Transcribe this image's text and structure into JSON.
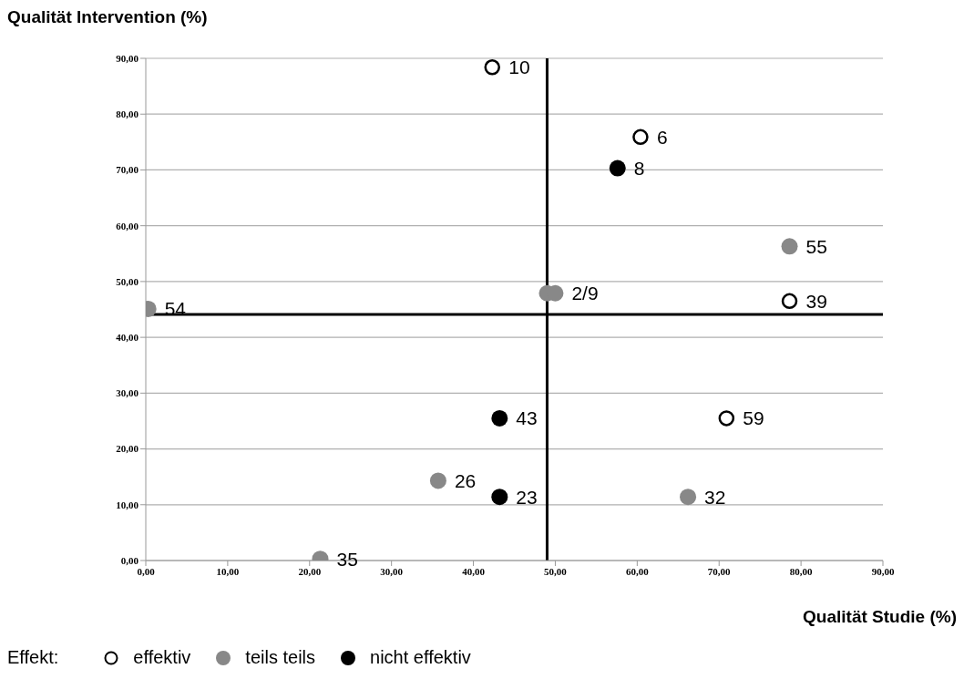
{
  "chart_data": {
    "type": "scatter",
    "xlabel": "Qualität Studie (%)",
    "ylabel": "Qualität Intervention (%)",
    "legend_title": "Effekt:",
    "legend": "bottom left",
    "grid": "y",
    "marker": "circle",
    "xlim": [
      0,
      90
    ],
    "ylim": [
      0,
      90
    ],
    "xticks": [
      {
        "value": 0,
        "label": "0,00"
      },
      {
        "value": 10,
        "label": "10,00"
      },
      {
        "value": 20,
        "label": "20,00"
      },
      {
        "value": 30,
        "label": "30,00"
      },
      {
        "value": 40,
        "label": "40,00"
      },
      {
        "value": 50,
        "label": "50,00"
      },
      {
        "value": 60,
        "label": "60,00"
      },
      {
        "value": 70,
        "label": "70,00"
      },
      {
        "value": 80,
        "label": "80,00"
      },
      {
        "value": 90,
        "label": "90,00"
      }
    ],
    "yticks": [
      {
        "value": 0,
        "label": "0,00"
      },
      {
        "value": 10,
        "label": "10,00"
      },
      {
        "value": 20,
        "label": "20,00"
      },
      {
        "value": 30,
        "label": "30,00"
      },
      {
        "value": 40,
        "label": "40,00"
      },
      {
        "value": 50,
        "label": "50,00"
      },
      {
        "value": 60,
        "label": "60,00"
      },
      {
        "value": 70,
        "label": "70,00"
      },
      {
        "value": 80,
        "label": "80,00"
      },
      {
        "value": 90,
        "label": "90,00"
      }
    ],
    "series": [
      {
        "name": "effektiv",
        "color": "#ffffff",
        "x": [
          42.3,
          60.4,
          78.6,
          70.9
        ],
        "values": [
          88.4,
          75.9,
          46.5,
          25.5
        ]
      },
      {
        "name": "teils teils",
        "color": "#888888",
        "x": [
          78.6,
          49.0,
          50.0,
          0.3,
          35.7,
          66.2,
          21.3
        ],
        "values": [
          56.3,
          47.9,
          47.9,
          45.1,
          14.3,
          11.4,
          0.3
        ]
      },
      {
        "name": "nicht effektiv",
        "color": "#000000",
        "x": [
          57.6,
          43.2,
          43.2
        ],
        "values": [
          70.3,
          25.5,
          11.4
        ]
      }
    ],
    "ref_lines": [
      {
        "axis": "x",
        "value": 49.0,
        "color": "#000000"
      },
      {
        "axis": "y",
        "value": 44.1,
        "color": "#000000"
      }
    ],
    "annotations": [
      {
        "text": "10",
        "x": 42.3,
        "y": 88.4
      },
      {
        "text": "6",
        "x": 60.4,
        "y": 75.9
      },
      {
        "text": "8",
        "x": 57.6,
        "y": 70.3
      },
      {
        "text": "55",
        "x": 78.6,
        "y": 56.3
      },
      {
        "text": "2/9",
        "x": 50.0,
        "y": 47.9
      },
      {
        "text": "39",
        "x": 78.6,
        "y": 46.5
      },
      {
        "text": "54",
        "x": 0.3,
        "y": 45.1
      },
      {
        "text": "43",
        "x": 43.2,
        "y": 25.5
      },
      {
        "text": "59",
        "x": 70.9,
        "y": 25.5
      },
      {
        "text": "26",
        "x": 35.7,
        "y": 14.3
      },
      {
        "text": "23",
        "x": 43.2,
        "y": 11.4
      },
      {
        "text": "32",
        "x": 66.2,
        "y": 11.4
      },
      {
        "text": "35",
        "x": 21.3,
        "y": 0.3
      }
    ]
  }
}
